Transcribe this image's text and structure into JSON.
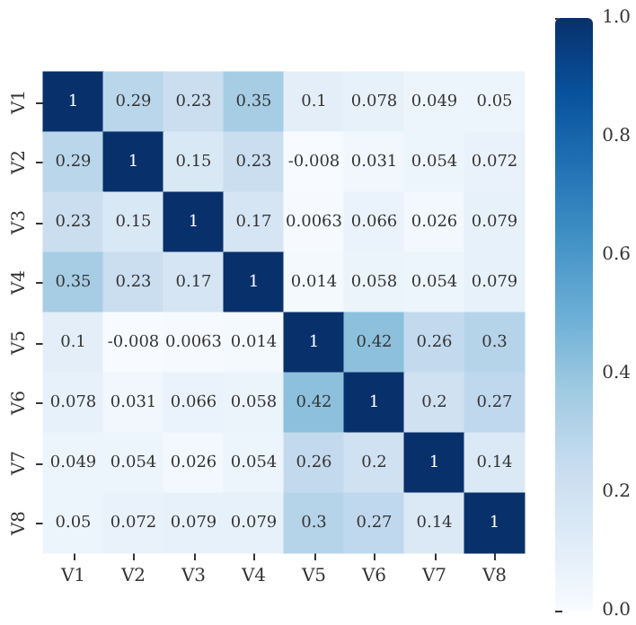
{
  "chart_data": {
    "type": "heatmap",
    "categories": [
      "V1",
      "V2",
      "V3",
      "V4",
      "V5",
      "V6",
      "V7",
      "V8"
    ],
    "y_categories": [
      "V1",
      "V2",
      "V3",
      "V4",
      "V5",
      "V6",
      "V7",
      "V8"
    ],
    "cells": [
      [
        1,
        0.29,
        0.23,
        0.35,
        0.1,
        0.078,
        0.049,
        0.05
      ],
      [
        0.29,
        1,
        0.15,
        0.23,
        -0.008,
        0.031,
        0.054,
        0.072
      ],
      [
        0.23,
        0.15,
        1,
        0.17,
        0.0063,
        0.066,
        0.026,
        0.079
      ],
      [
        0.35,
        0.23,
        0.17,
        1,
        0.014,
        0.058,
        0.054,
        0.079
      ],
      [
        0.1,
        -0.008,
        0.0063,
        0.014,
        1,
        0.42,
        0.26,
        0.3
      ],
      [
        0.078,
        0.031,
        0.066,
        0.058,
        0.42,
        1,
        0.2,
        0.27
      ],
      [
        0.049,
        0.054,
        0.026,
        0.054,
        0.26,
        0.2,
        1,
        0.14
      ],
      [
        0.05,
        0.072,
        0.079,
        0.079,
        0.3,
        0.27,
        0.14,
        1
      ]
    ],
    "data_labels": true,
    "clim": [
      0,
      1
    ],
    "cticks": [
      {
        "value": 0,
        "label": "0.0"
      },
      {
        "value": 0.2,
        "label": "0.2"
      },
      {
        "value": 0.4,
        "label": "0.4"
      },
      {
        "value": 0.6,
        "label": "0.6"
      },
      {
        "value": 0.8,
        "label": "0.8"
      },
      {
        "value": 1,
        "label": "1.0"
      }
    ]
  }
}
